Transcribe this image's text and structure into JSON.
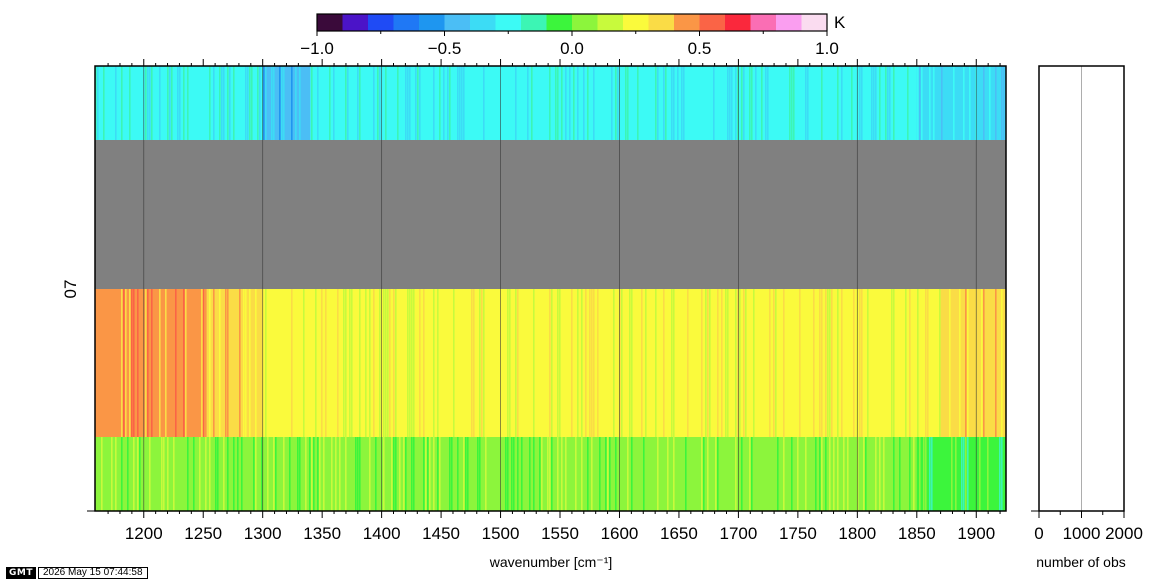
{
  "chart_data": [
    {
      "type": "heatmap",
      "title": "",
      "xlabel": "wavenumber [cm⁻¹]",
      "ylabel": "",
      "row_label": "07",
      "xlim": [
        1159,
        1925
      ],
      "x_ticks": [
        1200,
        1250,
        1300,
        1350,
        1400,
        1450,
        1500,
        1550,
        1600,
        1650,
        1700,
        1750,
        1800,
        1850,
        1900
      ],
      "x_tick_labels": [
        "1200",
        "1250",
        "1300",
        "1350",
        "1400",
        "1450",
        "1500",
        "1550",
        "1600",
        "1650",
        "1700",
        "1750",
        "1800",
        "1850",
        "1900"
      ],
      "x_gridlines": [
        1200,
        1300,
        1400,
        1500,
        1600,
        1700,
        1800,
        1900
      ],
      "bands": [
        {
          "row": 1,
          "missing": false,
          "typical_value": -0.3,
          "segments": [
            {
              "from": 1159,
              "to": 1300,
              "value": -0.3
            },
            {
              "from": 1300,
              "to": 1340,
              "value": -0.45
            },
            {
              "from": 1340,
              "to": 1850,
              "value": -0.3
            },
            {
              "from": 1850,
              "to": 1925,
              "value": -0.35
            }
          ]
        },
        {
          "row": 2,
          "missing": true,
          "fill": "#808080"
        },
        {
          "row": 3,
          "missing": false,
          "typical_value": 0.2,
          "segments": [
            {
              "from": 1159,
              "to": 1250,
              "value": 0.45
            },
            {
              "from": 1250,
              "to": 1300,
              "value": 0.3
            },
            {
              "from": 1300,
              "to": 1870,
              "value": 0.2
            },
            {
              "from": 1870,
              "to": 1925,
              "value": 0.3
            }
          ]
        },
        {
          "row": 4,
          "missing": false,
          "typical_value": 0.0,
          "segments": [
            {
              "from": 1159,
              "to": 1300,
              "value": 0.0
            },
            {
              "from": 1300,
              "to": 1850,
              "value": 0.05
            },
            {
              "from": 1850,
              "to": 1925,
              "value": -0.1
            }
          ]
        }
      ]
    },
    {
      "type": "bar",
      "orientation": "horizontal",
      "title": "",
      "xlabel": "number of obs",
      "xlim": [
        0,
        2000
      ],
      "x_ticks": [
        0,
        1000,
        2000
      ],
      "x_tick_labels": [
        "0",
        "1000",
        "2000"
      ],
      "x_gridlines": [
        1000
      ],
      "values": []
    }
  ],
  "colorbar": {
    "unit_label": "K",
    "range": [
      -1.0,
      1.0
    ],
    "tick_labels": [
      "−1.0",
      "−0.5",
      "0.0",
      "0.5",
      "1.0"
    ],
    "tick_values": [
      -1.0,
      -0.5,
      0.0,
      0.5,
      1.0
    ],
    "colors": [
      "#3a0a3a",
      "#4b14c8",
      "#1f4bf5",
      "#1f78f5",
      "#1e96f0",
      "#4bbef5",
      "#3cdcf5",
      "#3cfaf5",
      "#3cf5b4",
      "#3cf53c",
      "#8cf53c",
      "#c8fa3c",
      "#fafa3c",
      "#fadc46",
      "#fa9646",
      "#fa6446",
      "#fa283c",
      "#fa6eb4",
      "#fa9ef0",
      "#fadcf0"
    ]
  },
  "footer": {
    "logo_text": "GMT",
    "timestamp": "2026 May 15 07:44:58"
  }
}
